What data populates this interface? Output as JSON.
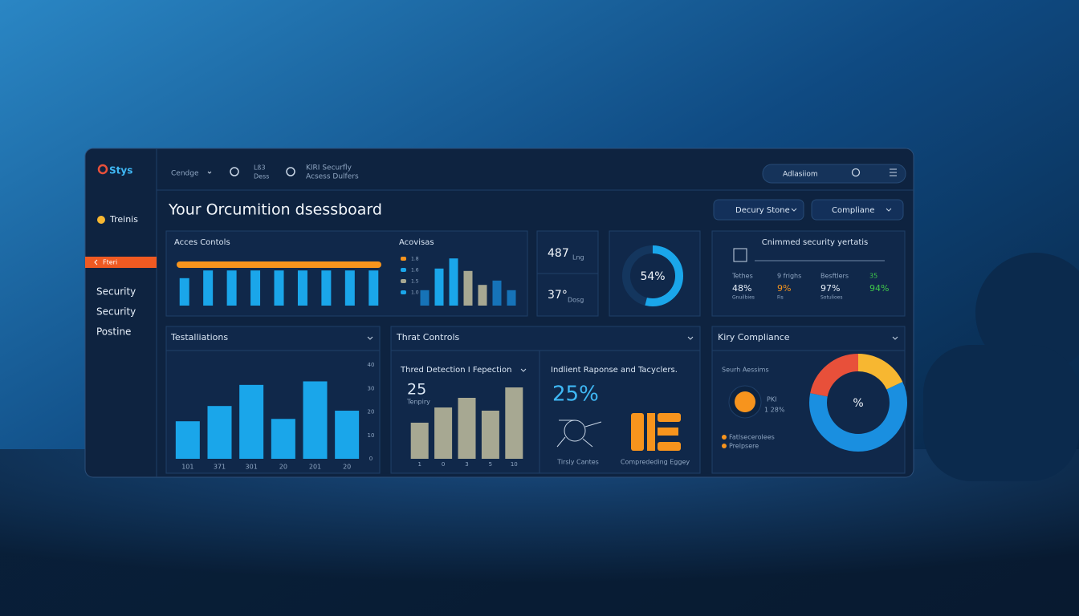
{
  "brand": "Stys",
  "topbar": {
    "menu": "Cendge",
    "link1": "Lß3",
    "link1_sub": "Dess",
    "link2": "KIRI Securfly",
    "link2_sub": "Acsess Dulfers",
    "user": "Adlasiiom"
  },
  "sidebar": {
    "items": [
      "Treinis",
      "Fteri",
      "Security",
      "Security",
      "Postine"
    ]
  },
  "title": "Your Orcumition dsessboard",
  "filters": [
    "Decury Stone",
    "Compliane"
  ],
  "access": {
    "title": "Acces Contols",
    "progress": 100,
    "progress_lim": [
      0,
      100
    ],
    "values": [
      57,
      73,
      73,
      73,
      73,
      73,
      73,
      73,
      73
    ],
    "ylim": [
      0,
      100
    ],
    "color": "#1aa6ea",
    "progress_color": "#f7941d"
  },
  "activity": {
    "title": "Acovisas",
    "legend": [
      "1.8",
      "1.6",
      "1.5",
      "1.0"
    ],
    "values": [
      32,
      77,
      98,
      72,
      43,
      52,
      32
    ],
    "colors": [
      "#1673b8",
      "#1aa6ea",
      "#1aa6ea",
      "#a7a892",
      "#a7a892",
      "#1673b8",
      "#1673b8"
    ],
    "ylim": [
      0,
      100
    ]
  },
  "kpis": [
    {
      "value": "487",
      "unit": "Lng"
    },
    {
      "value": "37°",
      "unit": "Dosg"
    }
  ],
  "donut": {
    "value": 54,
    "label": "54%",
    "max": 100,
    "color": "#1aa6ea"
  },
  "security": {
    "title": "Cnimmed security yertatis",
    "stats": [
      {
        "label": "Tethes",
        "value": "48%",
        "sub": "Gnuilbies",
        "color": "#e8f0fa"
      },
      {
        "label": "9 frighs",
        "value": "9%",
        "sub": "Fis",
        "color": "#f7941d"
      },
      {
        "label": "Besftlers",
        "value": "97%",
        "sub": "Sotulioes",
        "color": "#e8f0fa"
      },
      {
        "label": "35",
        "value": "94%",
        "sub": "",
        "color": "#3fc94a"
      }
    ]
  },
  "testing": {
    "title": "Testalliations",
    "categories": [
      "101",
      "371",
      "301",
      "20",
      "201",
      "20"
    ],
    "values": [
      16,
      22.5,
      31.5,
      17,
      33,
      20.5
    ],
    "ylim": [
      0,
      40
    ],
    "yticks": [
      0,
      10,
      20,
      30,
      40
    ],
    "color": "#1aa6ea"
  },
  "threat": {
    "title": "Thrat Controls",
    "detection": {
      "title": "Thred Detection I Fepection",
      "value": "25",
      "sub": "Tenpiry",
      "categories": [
        "1",
        "0",
        "3",
        "5",
        "10"
      ],
      "values": [
        45,
        64,
        76,
        60,
        89
      ],
      "ylim": [
        0,
        100
      ],
      "color": "#a7a892"
    },
    "incident": {
      "title": "Indlient Raponse and Tacyclers.",
      "value": "25%",
      "labels": [
        "Tirsly Cantes",
        "Comprededing Eggey"
      ]
    }
  },
  "compliance": {
    "title": "Kiry Compliance",
    "subtitle": "Seurh Aessims",
    "kpi_label": "PKI",
    "kpi_value": "1 28%",
    "legend": [
      "Fatlsecerolees",
      "Prelpsere"
    ],
    "center": "%",
    "segments": [
      {
        "value": 18,
        "color": "#f7b731"
      },
      {
        "value": 60,
        "color": "#1a8fe0"
      },
      {
        "value": 22,
        "color": "#e8503a"
      }
    ]
  }
}
